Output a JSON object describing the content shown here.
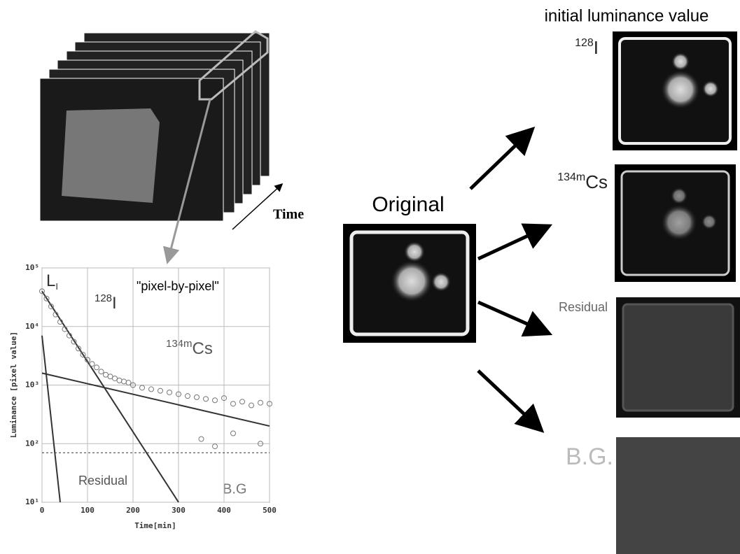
{
  "chart_data": {
    "type": "scatter",
    "xlabel": "Time[min]",
    "ylabel": "Luminance [pixel value]",
    "xlim": [
      0,
      500
    ],
    "ylim": [
      10,
      100000
    ],
    "log_y": true,
    "grid": true,
    "color": "#777777",
    "xticks": [
      0,
      100,
      200,
      300,
      400,
      500
    ],
    "yticks": [
      {
        "value": 10,
        "label": "10¹"
      },
      {
        "value": 100,
        "label": "10²"
      },
      {
        "value": 1000,
        "label": "10³"
      },
      {
        "value": 10000,
        "label": "10⁴"
      },
      {
        "value": 100000,
        "label": "10⁵"
      }
    ],
    "x": [
      0,
      10,
      20,
      30,
      40,
      50,
      60,
      70,
      80,
      90,
      100,
      110,
      120,
      130,
      140,
      150,
      160,
      170,
      180,
      190,
      200,
      220,
      240,
      260,
      280,
      300,
      320,
      340,
      360,
      380,
      400,
      420,
      440,
      460,
      480,
      500,
      350,
      380,
      420,
      480
    ],
    "values": [
      40000,
      30000,
      22000,
      16000,
      12000,
      9000,
      7000,
      5500,
      4200,
      3300,
      2700,
      2300,
      2000,
      1700,
      1500,
      1400,
      1300,
      1200,
      1150,
      1100,
      1000,
      900,
      850,
      800,
      750,
      700,
      650,
      620,
      580,
      550,
      600,
      480,
      520,
      450,
      500,
      480,
      120,
      90,
      150,
      100
    ],
    "fits": [
      {
        "x": [
          0,
          300
        ],
        "values": [
          40000,
          10
        ]
      },
      {
        "x": [
          0,
          500
        ],
        "values": [
          1600,
          200
        ]
      },
      {
        "x": [
          0,
          40
        ],
        "values": [
          7000,
          10
        ]
      }
    ],
    "background": 70,
    "annotations": {
      "l": "L",
      "l_sub": "I",
      "method": "\"pixel-by-pixel\"",
      "i128": {
        "sup": "128",
        "main": "I"
      },
      "cs134m": {
        "sup": "134m",
        "main": "Cs"
      },
      "residual": "Residual",
      "bg": "B.G"
    }
  },
  "labels": {
    "time": "Time",
    "original": "Original",
    "initial": "initial luminance value",
    "outputs": [
      {
        "sup": "128",
        "main": "I"
      },
      {
        "sup": "134m",
        "main": "Cs"
      },
      {
        "main": "Residual"
      },
      {
        "main": "B.G."
      }
    ]
  }
}
